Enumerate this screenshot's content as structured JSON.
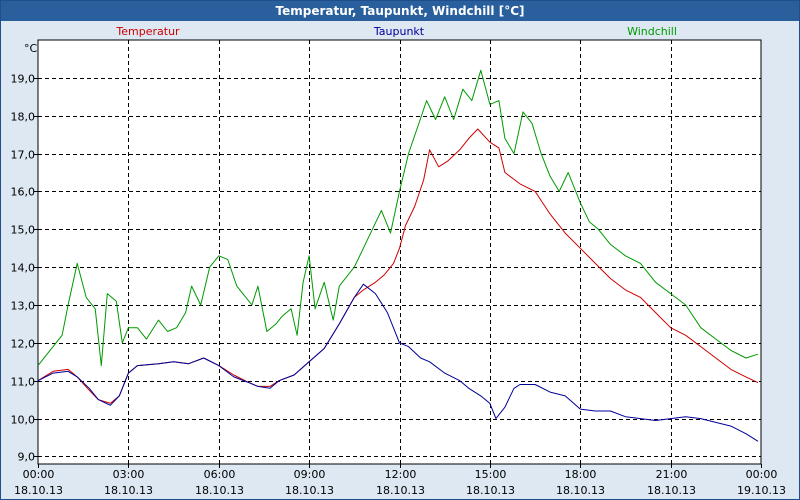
{
  "window": {
    "title": "Temperatur, Taupunkt, Windchill [°C]"
  },
  "chart_data": {
    "type": "line",
    "title": "Temperatur, Taupunkt, Windchill [°C]",
    "ylabel": "°C",
    "ylim": [
      8.8,
      20.0
    ],
    "xlim": [
      0,
      24
    ],
    "grid": true,
    "yticks": [
      "9,0",
      "10,0",
      "11,0",
      "12,0",
      "13,0",
      "14,0",
      "15,0",
      "16,0",
      "17,0",
      "18,0",
      "19,0"
    ],
    "ytick_values": [
      9,
      10,
      11,
      12,
      13,
      14,
      15,
      16,
      17,
      18,
      19
    ],
    "xticks": [
      {
        "time": "00:00",
        "date": "18.10.13"
      },
      {
        "time": "03:00",
        "date": "18.10.13"
      },
      {
        "time": "06:00",
        "date": "18.10.13"
      },
      {
        "time": "09:00",
        "date": "18.10.13"
      },
      {
        "time": "12:00",
        "date": "18.10.13"
      },
      {
        "time": "15:00",
        "date": "18.10.13"
      },
      {
        "time": "18:00",
        "date": "18.10.13"
      },
      {
        "time": "21:00",
        "date": "18.10.13"
      },
      {
        "time": "00:00",
        "date": "19.10.13"
      }
    ],
    "xtick_values": [
      0,
      3,
      6,
      9,
      12,
      15,
      18,
      21,
      24
    ],
    "series": [
      {
        "name": "Temperatur",
        "color": "#cc0000",
        "x": [
          0,
          0.5,
          1.0,
          1.3,
          1.7,
          2.0,
          2.4,
          2.7,
          3.0,
          3.3,
          4.0,
          4.5,
          5.0,
          5.5,
          6.0,
          6.5,
          7.0,
          7.3,
          7.7,
          8.0,
          8.5,
          9.0,
          9.5,
          10.0,
          10.5,
          10.8,
          11.2,
          11.5,
          11.8,
          12.0,
          12.2,
          12.5,
          12.8,
          13.0,
          13.3,
          13.6,
          14.0,
          14.3,
          14.6,
          15.0,
          15.3,
          15.5,
          16.0,
          16.5,
          17.0,
          17.5,
          18.0,
          18.5,
          19.0,
          19.5,
          20.0,
          20.5,
          21.0,
          21.5,
          22.0,
          22.5,
          23.0,
          23.5,
          23.9
        ],
        "values": [
          11.0,
          11.25,
          11.3,
          11.1,
          10.75,
          10.5,
          10.4,
          10.6,
          11.2,
          11.4,
          11.45,
          11.5,
          11.45,
          11.6,
          11.4,
          11.15,
          10.95,
          10.85,
          10.85,
          11.0,
          11.15,
          11.5,
          11.85,
          12.5,
          13.2,
          13.4,
          13.6,
          13.8,
          14.1,
          14.5,
          15.1,
          15.6,
          16.3,
          17.1,
          16.65,
          16.8,
          17.1,
          17.4,
          17.65,
          17.3,
          17.15,
          16.5,
          16.2,
          16.0,
          15.4,
          14.9,
          14.5,
          14.1,
          13.7,
          13.4,
          13.2,
          12.8,
          12.4,
          12.2,
          11.9,
          11.6,
          11.3,
          11.1,
          10.95
        ]
      },
      {
        "name": "Taupunkt",
        "color": "#000099",
        "x": [
          0,
          0.5,
          1.0,
          1.3,
          1.7,
          2.0,
          2.4,
          2.7,
          3.0,
          3.3,
          4.0,
          4.5,
          5.0,
          5.5,
          6.0,
          6.5,
          7.0,
          7.3,
          7.7,
          8.0,
          8.5,
          9.0,
          9.5,
          10.0,
          10.5,
          10.8,
          11.2,
          11.6,
          12.0,
          12.3,
          12.7,
          13.0,
          13.5,
          14.0,
          14.3,
          14.7,
          15.0,
          15.2,
          15.5,
          15.8,
          16.0,
          16.5,
          17.0,
          17.5,
          18.0,
          18.5,
          19.0,
          19.5,
          20.0,
          20.5,
          21.0,
          21.5,
          22.0,
          22.5,
          23.0,
          23.5,
          23.9
        ],
        "values": [
          11.0,
          11.2,
          11.25,
          11.1,
          10.8,
          10.5,
          10.35,
          10.6,
          11.2,
          11.4,
          11.45,
          11.5,
          11.45,
          11.6,
          11.4,
          11.1,
          10.95,
          10.85,
          10.8,
          11.0,
          11.15,
          11.5,
          11.85,
          12.5,
          13.2,
          13.55,
          13.3,
          12.8,
          12.0,
          11.9,
          11.6,
          11.5,
          11.2,
          11.0,
          10.8,
          10.6,
          10.4,
          10.0,
          10.3,
          10.8,
          10.9,
          10.9,
          10.7,
          10.6,
          10.25,
          10.2,
          10.2,
          10.05,
          10.0,
          9.95,
          10.0,
          10.05,
          10.0,
          9.9,
          9.8,
          9.6,
          9.4
        ]
      },
      {
        "name": "Windchill",
        "color": "#009900",
        "x": [
          0,
          0.5,
          0.8,
          1.0,
          1.3,
          1.6,
          1.9,
          2.1,
          2.3,
          2.6,
          2.8,
          3.0,
          3.3,
          3.6,
          4.0,
          4.3,
          4.6,
          4.9,
          5.1,
          5.4,
          5.7,
          6.0,
          6.3,
          6.6,
          6.9,
          7.1,
          7.3,
          7.6,
          7.9,
          8.1,
          8.4,
          8.6,
          8.8,
          9.0,
          9.2,
          9.5,
          9.8,
          10.0,
          10.5,
          10.8,
          11.1,
          11.4,
          11.7,
          12.0,
          12.3,
          12.6,
          12.9,
          13.2,
          13.5,
          13.8,
          14.1,
          14.4,
          14.7,
          15.0,
          15.3,
          15.5,
          15.8,
          16.1,
          16.4,
          16.7,
          17.0,
          17.3,
          17.6,
          18.0,
          18.3,
          18.6,
          19.0,
          19.5,
          20.0,
          20.5,
          21.0,
          21.5,
          22.0,
          22.5,
          23.0,
          23.5,
          23.9
        ],
        "values": [
          11.4,
          11.9,
          12.2,
          13.0,
          14.1,
          13.2,
          12.9,
          11.4,
          13.3,
          13.1,
          12.0,
          12.4,
          12.4,
          12.1,
          12.6,
          12.3,
          12.4,
          12.8,
          13.5,
          13.0,
          14.0,
          14.3,
          14.2,
          13.5,
          13.2,
          13.0,
          13.5,
          12.3,
          12.5,
          12.7,
          12.9,
          12.2,
          13.6,
          14.3,
          12.9,
          13.6,
          12.6,
          13.5,
          14.0,
          14.5,
          15.0,
          15.5,
          14.9,
          16.0,
          17.0,
          17.7,
          18.4,
          17.9,
          18.5,
          17.9,
          18.7,
          18.4,
          19.2,
          18.3,
          18.4,
          17.4,
          17.0,
          18.1,
          17.8,
          17.0,
          16.4,
          16.0,
          16.5,
          15.7,
          15.2,
          15.0,
          14.6,
          14.3,
          14.1,
          13.6,
          13.3,
          13.0,
          12.4,
          12.1,
          11.8,
          11.6,
          11.7
        ]
      }
    ]
  }
}
